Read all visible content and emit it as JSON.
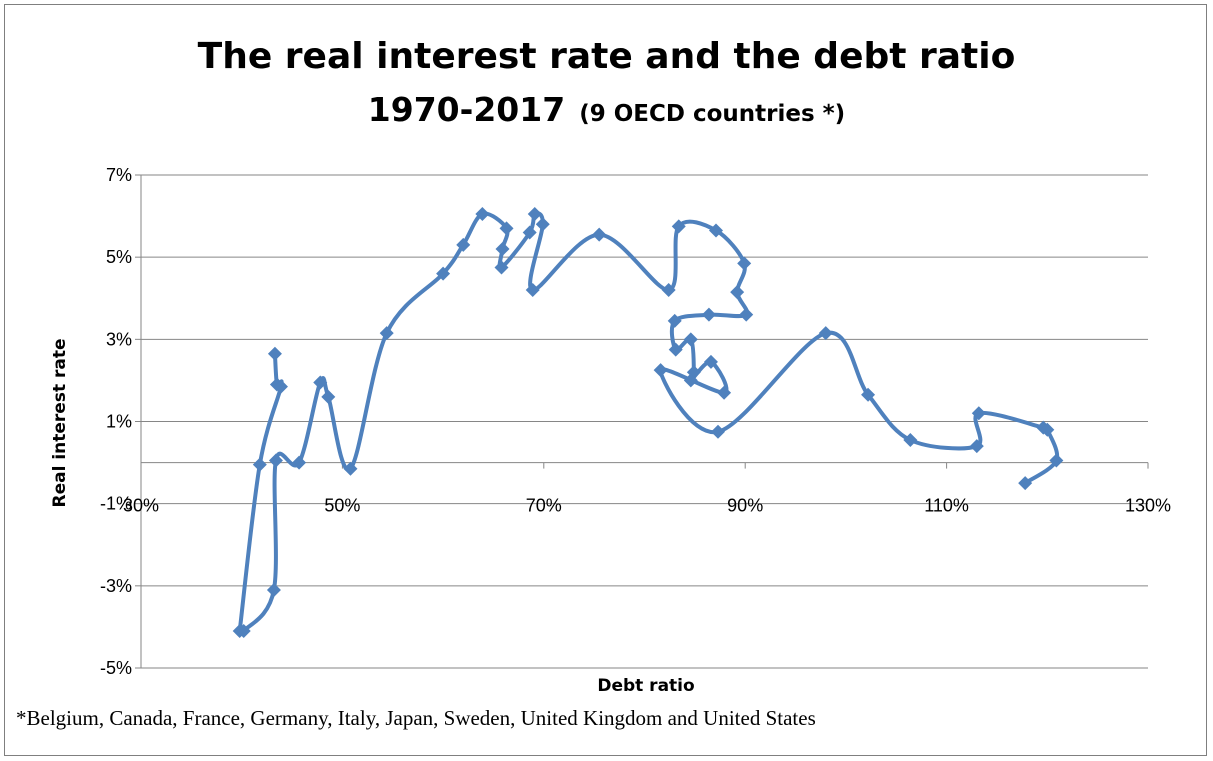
{
  "chart_data": {
    "type": "scatter",
    "title": "The real interest rate and the debt ratio",
    "subtitle_years": "1970-2017",
    "subtitle_note": "(9 OECD countries *)",
    "xlabel": "Debt ratio",
    "ylabel": "Real interest rate",
    "x_ticks": [
      "30%",
      "50%",
      "70%",
      "90%",
      "110%",
      "130%"
    ],
    "y_ticks": [
      "7%",
      "5%",
      "3%",
      "1%",
      "-1%",
      "-3%",
      "-5%"
    ],
    "xlim": [
      30,
      130
    ],
    "ylim": [
      -5,
      7
    ],
    "grid": "horizontal",
    "line_style": "smoothed line with diamond markers",
    "color": "#4f81bd",
    "footnote": "*Belgium, Canada, France, Germany, Italy, Japan, Sweden, United Kingdom and United States",
    "points": [
      {
        "x": 39.8,
        "y": -4.1
      },
      {
        "x": 40.2,
        "y": -4.1
      },
      {
        "x": 43.2,
        "y": -3.1
      },
      {
        "x": 43.4,
        "y": 0.05
      },
      {
        "x": 45.7,
        "y": 0.0
      },
      {
        "x": 47.8,
        "y": 1.95
      },
      {
        "x": 48.6,
        "y": 1.6
      },
      {
        "x": 50.8,
        "y": -0.15
      },
      {
        "x": 54.4,
        "y": 3.15
      },
      {
        "x": 60.0,
        "y": 4.6
      },
      {
        "x": 62.0,
        "y": 5.3
      },
      {
        "x": 63.9,
        "y": 6.05
      },
      {
        "x": 66.3,
        "y": 5.7
      },
      {
        "x": 65.9,
        "y": 5.2
      },
      {
        "x": 65.8,
        "y": 4.75
      },
      {
        "x": 68.6,
        "y": 5.6
      },
      {
        "x": 69.1,
        "y": 6.05
      },
      {
        "x": 69.9,
        "y": 5.8
      },
      {
        "x": 68.9,
        "y": 4.2
      },
      {
        "x": 75.5,
        "y": 5.55
      },
      {
        "x": 82.4,
        "y": 4.2
      },
      {
        "x": 83.4,
        "y": 5.75
      },
      {
        "x": 87.1,
        "y": 5.65
      },
      {
        "x": 89.9,
        "y": 4.85
      },
      {
        "x": 89.2,
        "y": 4.15
      },
      {
        "x": 90.1,
        "y": 3.6
      },
      {
        "x": 86.4,
        "y": 3.6
      },
      {
        "x": 83.0,
        "y": 3.45
      },
      {
        "x": 83.1,
        "y": 2.75
      },
      {
        "x": 84.6,
        "y": 3.0
      },
      {
        "x": 84.9,
        "y": 2.2
      },
      {
        "x": 84.6,
        "y": 2.0
      },
      {
        "x": 86.6,
        "y": 2.45
      },
      {
        "x": 87.9,
        "y": 1.7
      },
      {
        "x": 81.6,
        "y": 2.25
      },
      {
        "x": 87.3,
        "y": 0.75
      },
      {
        "x": 98.0,
        "y": 3.15
      },
      {
        "x": 102.2,
        "y": 1.65
      },
      {
        "x": 106.4,
        "y": 0.55
      },
      {
        "x": 113.0,
        "y": 0.4
      },
      {
        "x": 113.2,
        "y": 1.2
      },
      {
        "x": 119.6,
        "y": 0.85
      },
      {
        "x": 120.0,
        "y": 0.8
      },
      {
        "x": 120.9,
        "y": 0.05
      },
      {
        "x": 117.8,
        "y": -0.5
      }
    ],
    "spur_points": [
      {
        "x": 43.3,
        "y": 2.65
      },
      {
        "x": 43.5,
        "y": 1.9
      },
      {
        "x": 43.9,
        "y": 1.85
      },
      {
        "x": 41.8,
        "y": -0.05
      },
      {
        "x": 39.8,
        "y": -4.1
      }
    ]
  }
}
